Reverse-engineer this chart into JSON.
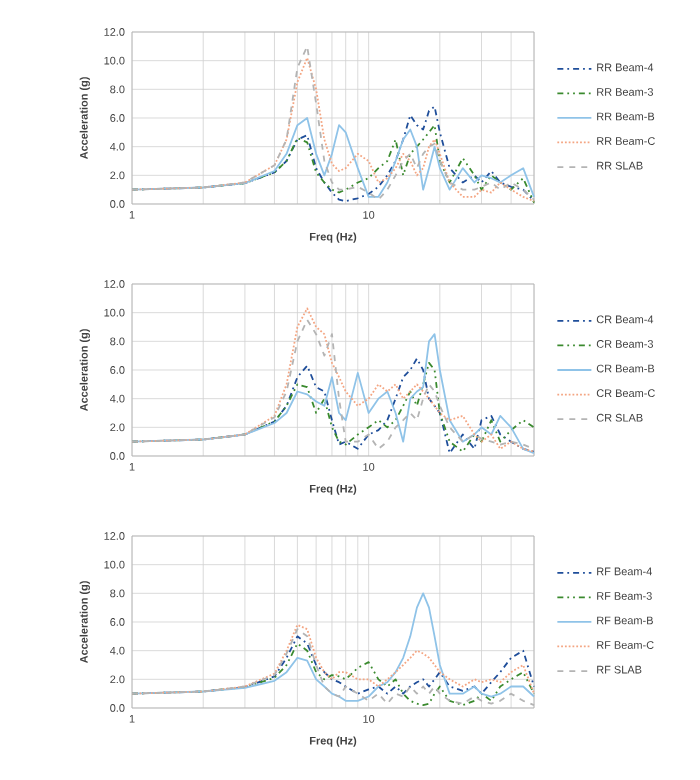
{
  "chart_data": [
    {
      "type": "line",
      "xlabel": "Freq (Hz)",
      "ylabel": "Acceleration (g)",
      "log": "x",
      "grid": true,
      "legend": "right",
      "xlim": [
        1,
        50
      ],
      "ylim": [
        0,
        12
      ],
      "xticks": [
        1,
        {
          "value": 2,
          "label": null
        },
        {
          "value": 3,
          "label": null
        },
        {
          "value": 4,
          "label": null
        },
        {
          "value": 5,
          "label": null
        },
        {
          "value": 6,
          "label": null
        },
        {
          "value": 7,
          "label": null
        },
        {
          "value": 8,
          "label": null
        },
        {
          "value": 9,
          "label": null
        },
        10,
        {
          "value": 20,
          "label": null
        },
        {
          "value": 30,
          "label": null
        },
        {
          "value": 40,
          "label": null
        },
        {
          "value": 50,
          "label": null
        }
      ],
      "yticks": [
        {
          "value": 0,
          "label": "0.0"
        },
        {
          "value": 2,
          "label": "2.0"
        },
        {
          "value": 4,
          "label": "4.0"
        },
        {
          "value": 6,
          "label": "6.0"
        },
        {
          "value": 8,
          "label": "8.0"
        },
        {
          "value": 10,
          "label": "10.0"
        },
        {
          "value": 12,
          "label": "12.0"
        }
      ],
      "x": [
        1,
        2,
        3,
        4,
        4.5,
        5,
        5.5,
        6,
        6.5,
        7,
        7.5,
        8,
        9,
        10,
        11,
        12,
        13,
        14,
        15,
        16,
        17,
        18,
        19,
        20,
        22,
        25,
        28,
        30,
        33,
        36,
        40,
        45,
        50
      ],
      "series": [
        {
          "name": "RR Beam-4",
          "color": "#1f4e9a",
          "line_style": "dashdot",
          "values": [
            1.0,
            1.15,
            1.45,
            2.2,
            3,
            4.5,
            4.8,
            2.5,
            1.5,
            0.8,
            0.3,
            0.2,
            0.4,
            0.7,
            1.2,
            2.0,
            3.0,
            4.5,
            6.2,
            5.5,
            5.2,
            6.5,
            6.8,
            5.0,
            2.5,
            1.5,
            2.0,
            1.5,
            2.3,
            1.5,
            1.2,
            1.0,
            0.2
          ]
        },
        {
          "name": "RR Beam-3",
          "color": "#3a8a2e",
          "line_style": "dashdotdot",
          "values": [
            1.0,
            1.15,
            1.45,
            2.2,
            3,
            4.6,
            4.3,
            2.2,
            1.5,
            1.0,
            0.8,
            1.0,
            1.5,
            1.8,
            2.5,
            3.0,
            4.5,
            2.0,
            3.5,
            4.0,
            4.5,
            5.0,
            5.5,
            3.0,
            1.5,
            3.2,
            2.0,
            1.0,
            2.0,
            1.5,
            1.0,
            1.8,
            0.1
          ]
        },
        {
          "name": "RR Beam-B",
          "color": "#8fc3e8",
          "line_style": "solid",
          "values": [
            1.0,
            1.15,
            1.45,
            2.3,
            3.5,
            5.5,
            6.0,
            3.5,
            2.0,
            3.5,
            5.5,
            5.0,
            2.5,
            0.5,
            0.5,
            1.5,
            3.0,
            4.5,
            5.2,
            4.0,
            1.0,
            2.5,
            4.0,
            2.5,
            1.0,
            2.5,
            1.5,
            2.0,
            1.8,
            1.5,
            2.0,
            2.5,
            0.5
          ]
        },
        {
          "name": "RR Beam-C",
          "color": "#f4a582",
          "line_style": "dotted",
          "values": [
            1.0,
            1.15,
            1.5,
            2.7,
            4.5,
            8.5,
            10.2,
            8.0,
            4.5,
            2.8,
            2.3,
            2.5,
            3.5,
            3.0,
            1.5,
            1.8,
            2.5,
            3.5,
            3.0,
            2.0,
            2.5,
            4.0,
            4.5,
            3.5,
            1.5,
            0.5,
            0.5,
            1.0,
            0.8,
            1.5,
            1.0,
            0.5,
            0.2
          ]
        },
        {
          "name": "RR SLAB",
          "color": "#b4b4b4",
          "line_style": "dashed",
          "values": [
            1.0,
            1.15,
            1.5,
            2.7,
            4.5,
            9.5,
            11.0,
            7.0,
            3.0,
            1.5,
            1.0,
            1.0,
            1.2,
            0.8,
            0.3,
            1.0,
            2.0,
            3.0,
            3.5,
            2.5,
            3.5,
            4.0,
            4.2,
            3.0,
            1.5,
            1.0,
            1.0,
            1.2,
            1.5,
            1.0,
            1.5,
            1.0,
            0.3
          ]
        }
      ]
    },
    {
      "type": "line",
      "xlabel": "Freq (Hz)",
      "ylabel": "Acceleration (g)",
      "log": "x",
      "grid": true,
      "legend": "right",
      "xlim": [
        1,
        50
      ],
      "ylim": [
        0,
        12
      ],
      "xticks": [
        1,
        {
          "value": 2,
          "label": null
        },
        {
          "value": 3,
          "label": null
        },
        {
          "value": 4,
          "label": null
        },
        {
          "value": 5,
          "label": null
        },
        {
          "value": 6,
          "label": null
        },
        {
          "value": 7,
          "label": null
        },
        {
          "value": 8,
          "label": null
        },
        {
          "value": 9,
          "label": null
        },
        10,
        {
          "value": 20,
          "label": null
        },
        {
          "value": 30,
          "label": null
        },
        {
          "value": 40,
          "label": null
        },
        {
          "value": 50,
          "label": null
        }
      ],
      "yticks": [
        {
          "value": 0,
          "label": "0.0"
        },
        {
          "value": 2,
          "label": "2.0"
        },
        {
          "value": 4,
          "label": "4.0"
        },
        {
          "value": 6,
          "label": "6.0"
        },
        {
          "value": 8,
          "label": "8.0"
        },
        {
          "value": 10,
          "label": "10.0"
        },
        {
          "value": 12,
          "label": "12.0"
        }
      ],
      "x": [
        1,
        2,
        3,
        4,
        4.5,
        5,
        5.5,
        6,
        6.5,
        7,
        7.5,
        8,
        9,
        10,
        11,
        12,
        13,
        14,
        15,
        16,
        17,
        18,
        19,
        20,
        22,
        25,
        28,
        30,
        33,
        36,
        40,
        45,
        50
      ],
      "series": [
        {
          "name": "CR Beam-4",
          "color": "#1f4e9a",
          "line_style": "dashdot",
          "values": [
            1.0,
            1.15,
            1.5,
            2.4,
            3.5,
            5.5,
            6.3,
            4.8,
            4.5,
            2.5,
            0.8,
            1.0,
            0.5,
            1.5,
            1.8,
            2.5,
            4.0,
            5.5,
            6.0,
            6.8,
            6.0,
            4.0,
            3.5,
            3.0,
            0.2,
            1.5,
            0.5,
            2.5,
            2.8,
            1.5,
            1.0,
            0.5,
            0.3
          ]
        },
        {
          "name": "CR Beam-3",
          "color": "#3a8a2e",
          "line_style": "dashdotdot",
          "values": [
            1.0,
            1.15,
            1.5,
            2.4,
            3.5,
            5.0,
            4.8,
            3.0,
            4.0,
            2.0,
            1.0,
            0.8,
            1.5,
            2.0,
            2.5,
            2.0,
            2.5,
            3.5,
            4.5,
            3.5,
            5.0,
            6.5,
            6.0,
            3.0,
            1.0,
            0.3,
            1.5,
            1.0,
            2.5,
            1.0,
            1.8,
            2.5,
            2.0
          ]
        },
        {
          "name": "CR Beam-B",
          "color": "#8fc3e8",
          "line_style": "solid",
          "values": [
            1.0,
            1.15,
            1.5,
            2.3,
            3.0,
            4.5,
            4.3,
            3.8,
            3.5,
            5.5,
            3.0,
            2.5,
            5.8,
            3.0,
            4.0,
            4.5,
            3.0,
            1.0,
            4.0,
            4.5,
            4.8,
            8.0,
            8.5,
            6.0,
            2.5,
            1.0,
            1.5,
            2.0,
            1.5,
            2.8,
            2.0,
            0.5,
            0.2
          ]
        },
        {
          "name": "CR Beam-C",
          "color": "#f4a582",
          "line_style": "dotted",
          "values": [
            1.0,
            1.15,
            1.5,
            2.8,
            5.0,
            9.0,
            10.3,
            9.0,
            8.5,
            6.5,
            5.5,
            4.5,
            3.5,
            4.0,
            5.0,
            4.5,
            5.0,
            4.0,
            4.5,
            5.0,
            4.5,
            4.0,
            3.5,
            3.0,
            2.5,
            2.8,
            1.5,
            1.0,
            1.5,
            0.5,
            1.0,
            0.5,
            0.3
          ]
        },
        {
          "name": "CR SLAB",
          "color": "#b4b4b4",
          "line_style": "dashed",
          "values": [
            1.0,
            1.15,
            1.5,
            2.7,
            4.5,
            8.0,
            9.5,
            8.5,
            7.0,
            8.5,
            4.0,
            1.0,
            1.0,
            1.5,
            0.5,
            1.0,
            2.0,
            2.5,
            3.0,
            2.5,
            4.0,
            5.0,
            4.5,
            3.5,
            2.0,
            1.0,
            1.5,
            1.2,
            1.0,
            0.8,
            1.0,
            0.8,
            0.5
          ]
        }
      ]
    },
    {
      "type": "line",
      "xlabel": "Freq (Hz)",
      "ylabel": "Acceleration (g)",
      "log": "x",
      "grid": true,
      "legend": "right",
      "xlim": [
        1,
        50
      ],
      "ylim": [
        0,
        12
      ],
      "xticks": [
        1,
        {
          "value": 2,
          "label": null
        },
        {
          "value": 3,
          "label": null
        },
        {
          "value": 4,
          "label": null
        },
        {
          "value": 5,
          "label": null
        },
        {
          "value": 6,
          "label": null
        },
        {
          "value": 7,
          "label": null
        },
        {
          "value": 8,
          "label": null
        },
        {
          "value": 9,
          "label": null
        },
        10,
        {
          "value": 20,
          "label": null
        },
        {
          "value": 30,
          "label": null
        },
        {
          "value": 40,
          "label": null
        },
        {
          "value": 50,
          "label": null
        }
      ],
      "yticks": [
        {
          "value": 0,
          "label": "0.0"
        },
        {
          "value": 2,
          "label": "2.0"
        },
        {
          "value": 4,
          "label": "4.0"
        },
        {
          "value": 6,
          "label": "6.0"
        },
        {
          "value": 8,
          "label": "8.0"
        },
        {
          "value": 10,
          "label": "10.0"
        },
        {
          "value": 12,
          "label": "12.0"
        }
      ],
      "x": [
        1,
        2,
        3,
        4,
        4.5,
        5,
        5.5,
        6,
        6.5,
        7,
        7.5,
        8,
        9,
        10,
        11,
        12,
        13,
        14,
        15,
        16,
        17,
        18,
        19,
        20,
        22,
        25,
        28,
        30,
        33,
        36,
        40,
        45,
        50
      ],
      "series": [
        {
          "name": "RF Beam-4",
          "color": "#1f4e9a",
          "line_style": "dashdot",
          "values": [
            1.0,
            1.15,
            1.45,
            2.2,
            3.5,
            5.0,
            4.5,
            3.0,
            2.5,
            2.0,
            1.8,
            1.5,
            1.0,
            1.3,
            1.5,
            1.0,
            1.5,
            1.0,
            1.5,
            1.8,
            2.0,
            1.5,
            2.0,
            2.5,
            1.5,
            1.2,
            1.5,
            1.0,
            1.8,
            2.5,
            3.5,
            4.0,
            1.5
          ]
        },
        {
          "name": "RF Beam-3",
          "color": "#3a8a2e",
          "line_style": "dashdotdot",
          "values": [
            1.0,
            1.15,
            1.45,
            2.1,
            3.0,
            4.5,
            4.0,
            2.5,
            2.0,
            2.3,
            2.2,
            2.0,
            2.8,
            3.2,
            2.0,
            1.5,
            2.0,
            1.0,
            0.5,
            0.3,
            0.2,
            0.3,
            1.0,
            1.5,
            0.5,
            0.2,
            0.5,
            1.0,
            0.5,
            1.5,
            2.0,
            2.5,
            1.0
          ]
        },
        {
          "name": "RF Beam-B",
          "color": "#8fc3e8",
          "line_style": "solid",
          "values": [
            1.0,
            1.15,
            1.4,
            1.9,
            2.5,
            3.5,
            3.3,
            2.0,
            1.5,
            1.0,
            0.8,
            0.5,
            0.5,
            0.8,
            1.5,
            1.8,
            2.5,
            3.5,
            5.0,
            7.0,
            8.0,
            7.0,
            5.0,
            3.0,
            1.0,
            1.0,
            1.5,
            1.0,
            0.8,
            1.0,
            1.5,
            1.5,
            0.8
          ]
        },
        {
          "name": "RF Beam-C",
          "color": "#f4a582",
          "line_style": "dotted",
          "values": [
            1.0,
            1.15,
            1.5,
            2.4,
            4.0,
            5.8,
            5.5,
            3.5,
            2.5,
            2.0,
            2.5,
            2.5,
            2.0,
            2.0,
            1.5,
            2.0,
            2.5,
            3.0,
            3.5,
            4.0,
            3.8,
            3.5,
            3.0,
            2.5,
            2.0,
            1.5,
            2.0,
            1.8,
            2.0,
            1.8,
            2.5,
            3.0,
            1.0
          ]
        },
        {
          "name": "RF SLAB",
          "color": "#b4b4b4",
          "line_style": "dashed",
          "values": [
            1.0,
            1.15,
            1.5,
            2.3,
            3.8,
            5.5,
            5.0,
            3.0,
            1.5,
            1.0,
            0.8,
            1.5,
            1.0,
            0.5,
            1.0,
            0.3,
            1.0,
            0.8,
            1.5,
            1.0,
            1.5,
            1.0,
            1.5,
            1.0,
            0.5,
            0.3,
            0.8,
            0.5,
            0.3,
            0.5,
            1.0,
            0.5,
            0.2
          ]
        }
      ]
    }
  ]
}
